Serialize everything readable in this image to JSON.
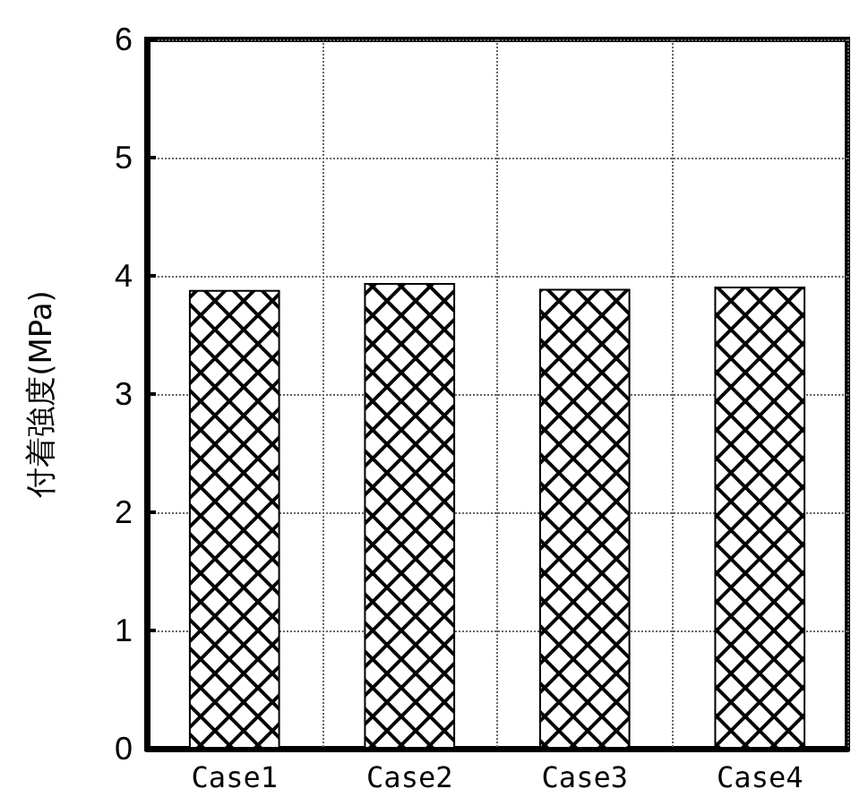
{
  "chart_data": {
    "type": "bar",
    "ylabel": "付着強度(MPa)",
    "categories": [
      "Case1",
      "Case2",
      "Case3",
      "Case4"
    ],
    "values": [
      3.88,
      3.94,
      3.89,
      3.91
    ],
    "color": "#000000",
    "ylim": [
      0,
      6
    ],
    "yticks": [
      0,
      1,
      2,
      3,
      4,
      5,
      6
    ],
    "grid": true
  }
}
